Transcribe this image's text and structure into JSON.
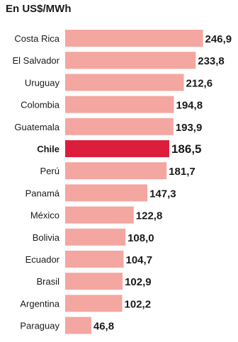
{
  "chart_data": {
    "type": "bar",
    "orientation": "horizontal",
    "title": "En US$/MWh",
    "categories": [
      "Costa Rica",
      "El Salvador",
      "Uruguay",
      "Colombia",
      "Guatemala",
      "Chile",
      "Perú",
      "Panamá",
      "México",
      "Bolivia",
      "Ecuador",
      "Brasil",
      "Argentina",
      "Paraguay"
    ],
    "values": [
      246.9,
      233.8,
      212.6,
      194.8,
      193.9,
      186.5,
      181.7,
      147.3,
      122.8,
      108.0,
      104.7,
      102.9,
      102.2,
      46.8
    ],
    "value_labels": [
      "246,9",
      "233,8",
      "212,6",
      "194,8",
      "193,9",
      "186,5",
      "181,7",
      "147,3",
      "122,8",
      "108,0",
      "104,7",
      "102,9",
      "102,2",
      "46,8"
    ],
    "highlight": "Chile",
    "colors": {
      "bar": "#f4a6a0",
      "highlight_bar": "#dc1e3c",
      "text": "#1a1a1a"
    },
    "legend": "none",
    "grid": false
  }
}
